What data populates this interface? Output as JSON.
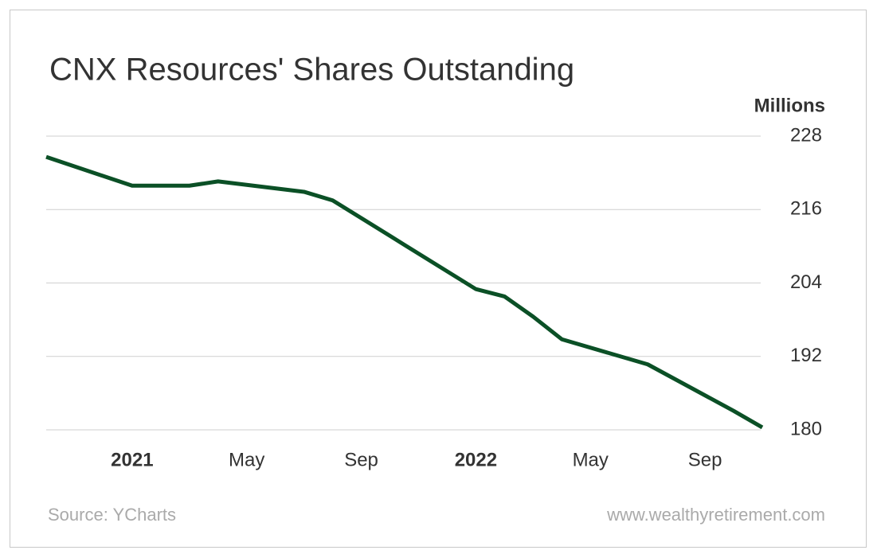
{
  "chart_data": {
    "type": "line",
    "title": "CNX Resources' Shares Outstanding",
    "y_axis_label": "Millions",
    "x": [
      "2020-10",
      "2021-01",
      "2021-03",
      "2021-04",
      "2021-07",
      "2021-08",
      "2021-10",
      "2022-01",
      "2022-02",
      "2022-03",
      "2022-04",
      "2022-07",
      "2022-10",
      "2022-11"
    ],
    "series": [
      {
        "name": "Shares Outstanding",
        "color": "#0b5026",
        "values": [
          224.6,
          219.9,
          219.9,
          220.6,
          218.9,
          217.5,
          211.7,
          203.0,
          201.8,
          198.5,
          194.8,
          190.7,
          183.1,
          180.4
        ]
      }
    ],
    "xlim": [
      "2020-10",
      "2022-11"
    ],
    "xticks": [
      {
        "value": "2021-01",
        "label": "2021"
      },
      {
        "value": "2021-05",
        "label": "May"
      },
      {
        "value": "2021-09",
        "label": "Sep"
      },
      {
        "value": "2022-01",
        "label": "2022"
      },
      {
        "value": "2022-05",
        "label": "May"
      },
      {
        "value": "2022-09",
        "label": "Sep"
      }
    ],
    "ylim": [
      180,
      228
    ],
    "yticks": [
      180,
      192,
      204,
      216,
      228
    ],
    "grid": true,
    "source": "Source: YCharts",
    "website": "www.wealthyretirement.com"
  }
}
